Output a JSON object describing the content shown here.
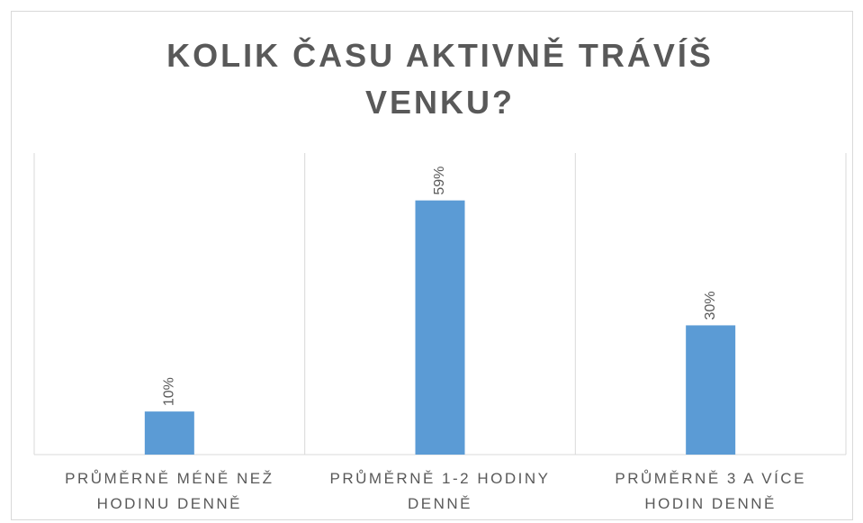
{
  "chart_data": {
    "type": "bar",
    "title": "KOLIK ČASU AKTIVNĚ TRÁVÍŠ VENKU?",
    "categories": [
      "PRŮMĚRNĚ MÉNĚ NEŽ HODINU DENNĚ",
      "PRŮMĚRNĚ 1-2 HODINY DENNĚ",
      "PRŮMĚRNĚ 3 A VÍCE HODIN DENNĚ"
    ],
    "values": [
      10,
      59,
      30
    ],
    "value_labels": [
      "10%",
      "59%",
      "30%"
    ],
    "color": "#5b9bd5",
    "ylim": [
      0,
      70
    ]
  }
}
